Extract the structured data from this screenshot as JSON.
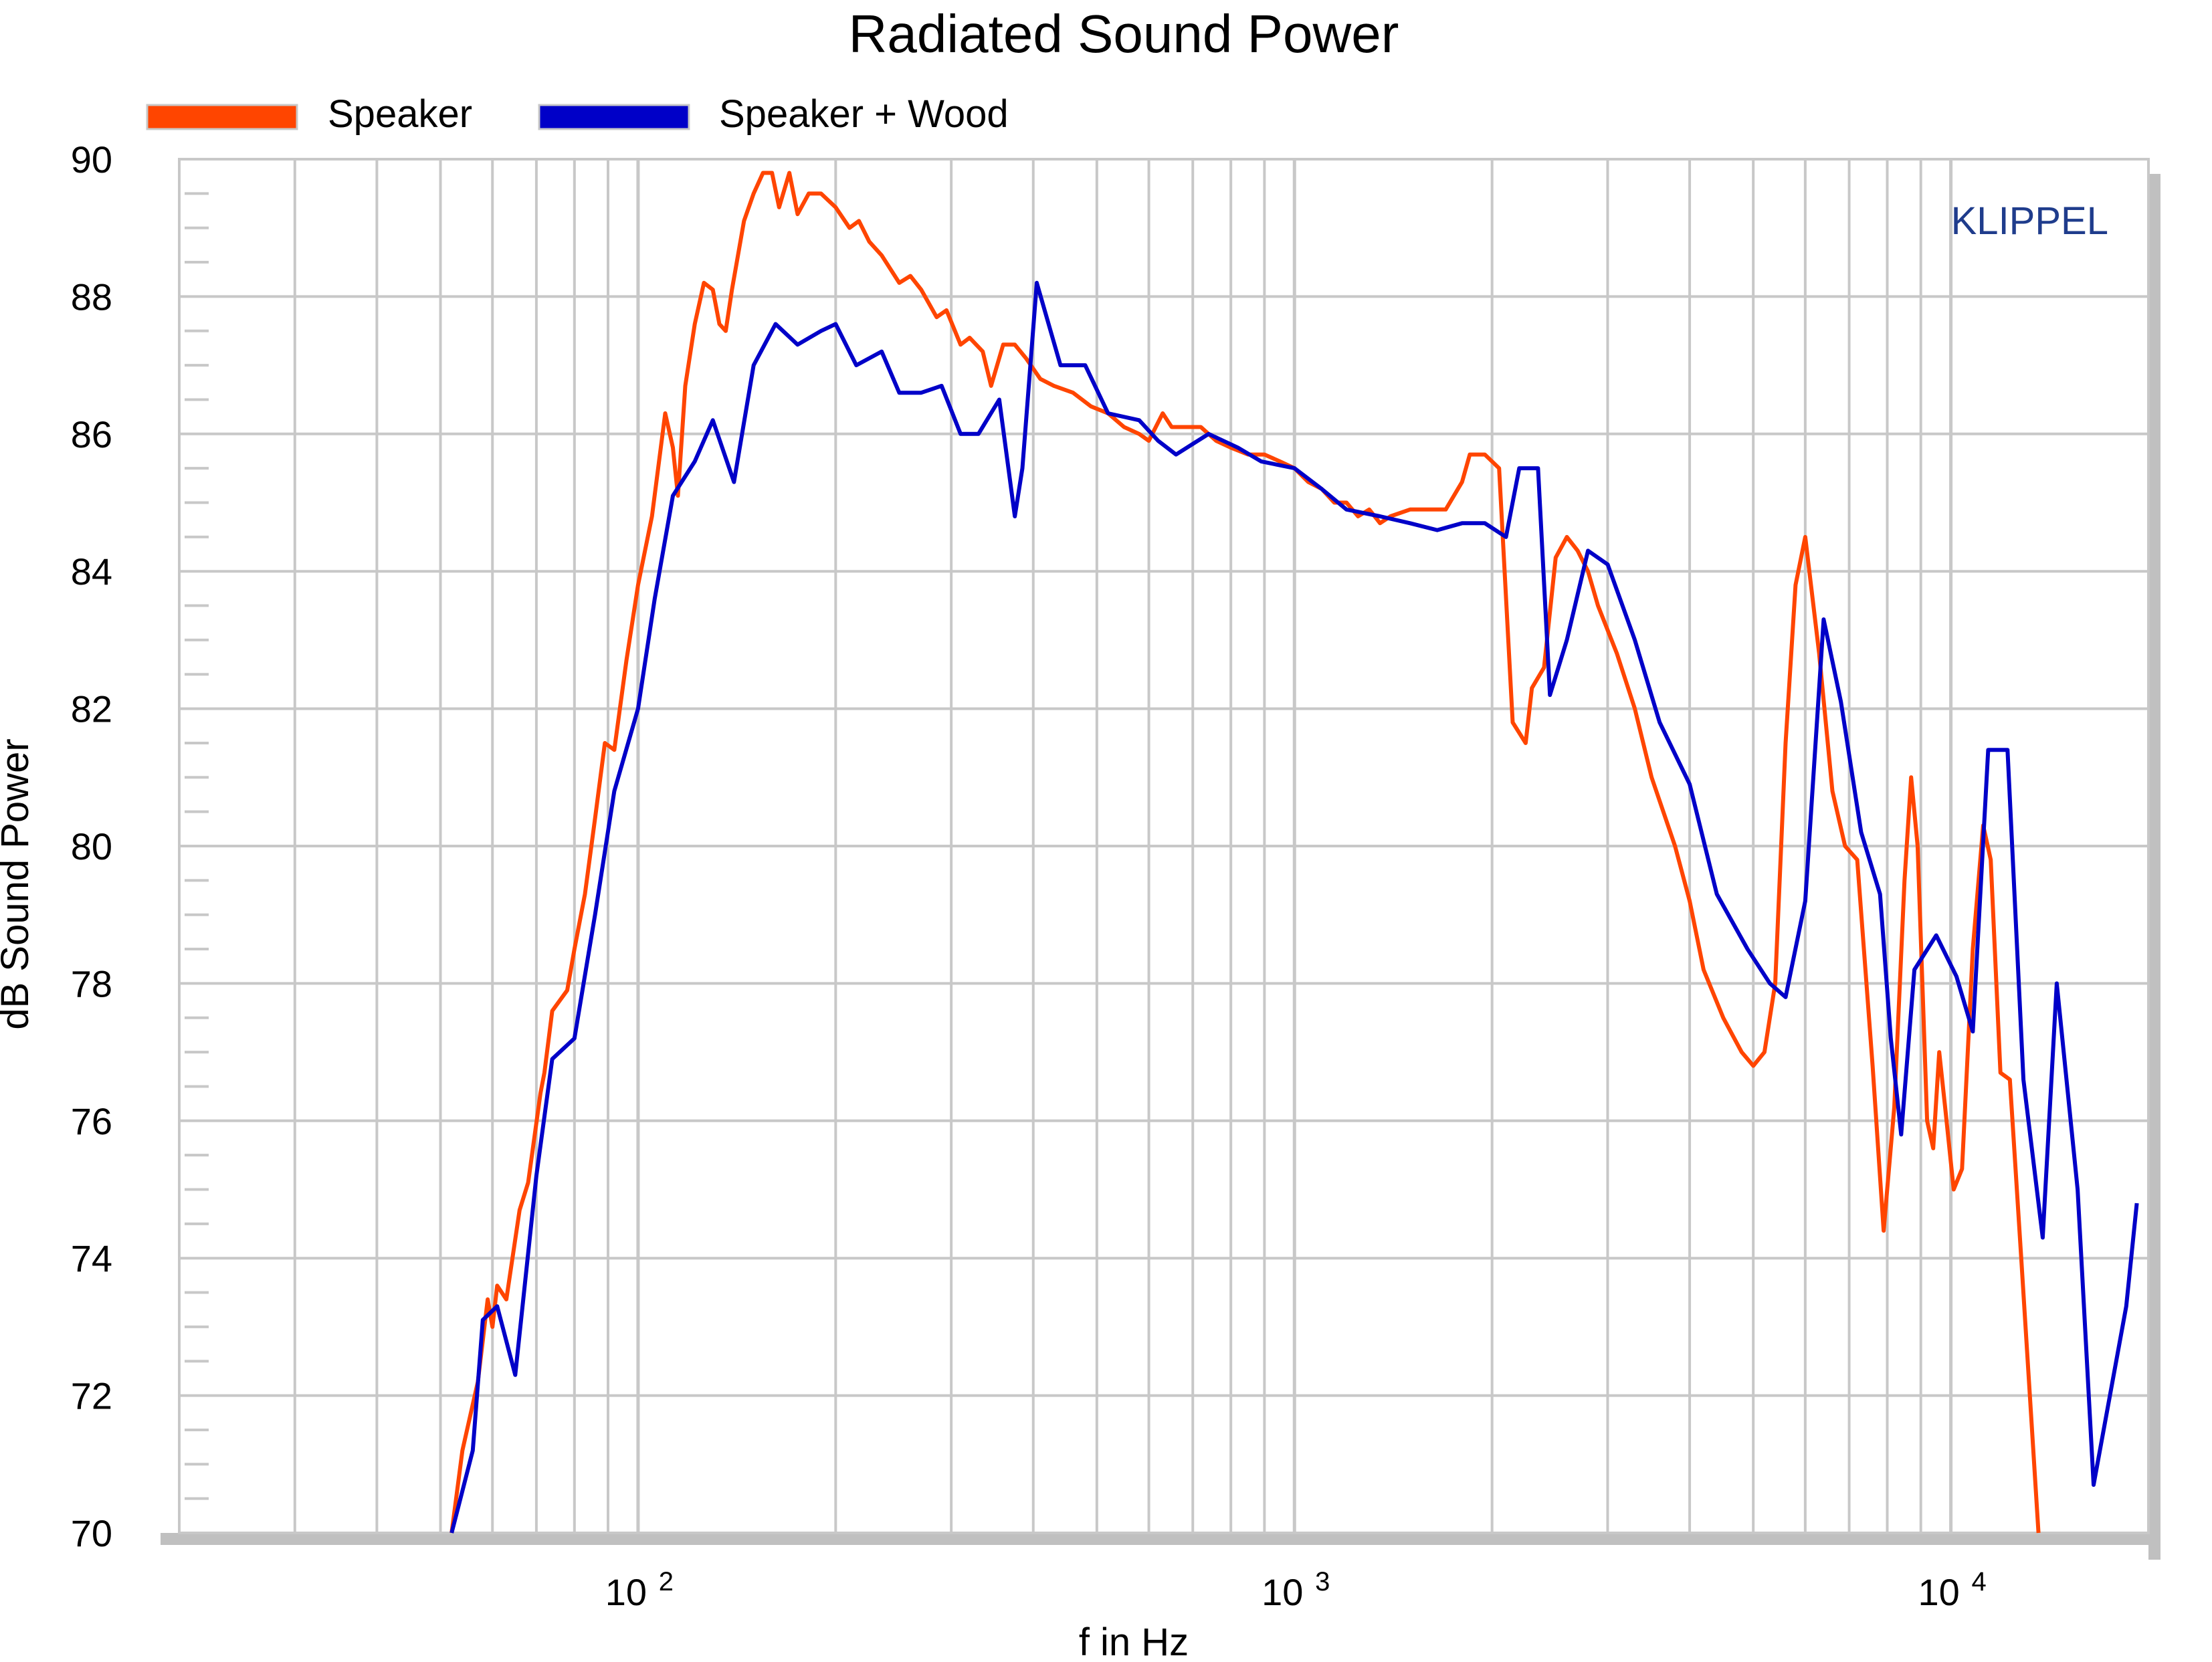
{
  "chart_data": {
    "type": "line",
    "title": "Radiated Sound Power",
    "xlabel": "f in Hz",
    "ylabel": "dB Sound Power",
    "watermark": "KLIPPEL",
    "x_scale": "log",
    "xlim": [
      20,
      20000
    ],
    "ylim": [
      70,
      90
    ],
    "grid": true,
    "legend_position": "top-left",
    "x_ticks": [
      {
        "value": 100,
        "base": "10",
        "exp": "2"
      },
      {
        "value": 1000,
        "base": "10",
        "exp": "3"
      },
      {
        "value": 10000,
        "base": "10",
        "exp": "4"
      }
    ],
    "y_ticks": [
      70,
      72,
      74,
      76,
      78,
      80,
      82,
      84,
      86,
      88,
      90
    ],
    "colors": {
      "grid": "#c8c8c8",
      "shadow": "#c0c0c0",
      "frame": "#c8c8c8",
      "watermark": "#1f3c8c",
      "text": "#000000"
    },
    "series": [
      {
        "name": "Speaker",
        "color": "#ff4500",
        "points": [
          [
            52,
            70
          ],
          [
            54,
            71.2
          ],
          [
            57,
            72.2
          ],
          [
            59,
            73.4
          ],
          [
            60,
            73.0
          ],
          [
            61,
            73.6
          ],
          [
            63,
            73.4
          ],
          [
            66,
            74.7
          ],
          [
            68,
            75.1
          ],
          [
            71,
            76.4
          ],
          [
            72,
            76.7
          ],
          [
            74,
            77.6
          ],
          [
            78,
            77.9
          ],
          [
            80,
            78.5
          ],
          [
            83,
            79.3
          ],
          [
            86,
            80.4
          ],
          [
            89,
            81.5
          ],
          [
            92,
            81.4
          ],
          [
            96,
            82.7
          ],
          [
            100,
            83.8
          ],
          [
            105,
            84.8
          ],
          [
            110,
            86.3
          ],
          [
            113,
            85.8
          ],
          [
            115,
            85.1
          ],
          [
            118,
            86.7
          ],
          [
            122,
            87.6
          ],
          [
            126,
            88.2
          ],
          [
            130,
            88.1
          ],
          [
            133,
            87.6
          ],
          [
            136,
            87.5
          ],
          [
            139,
            88.1
          ],
          [
            145,
            89.1
          ],
          [
            150,
            89.5
          ],
          [
            155,
            89.8
          ],
          [
            160,
            89.8
          ],
          [
            164,
            89.3
          ],
          [
            170,
            89.8
          ],
          [
            175,
            89.2
          ],
          [
            182,
            89.5
          ],
          [
            190,
            89.5
          ],
          [
            200,
            89.3
          ],
          [
            210,
            89.0
          ],
          [
            217,
            89.1
          ],
          [
            225,
            88.8
          ],
          [
            235,
            88.6
          ],
          [
            250,
            88.2
          ],
          [
            260,
            88.3
          ],
          [
            270,
            88.1
          ],
          [
            285,
            87.7
          ],
          [
            295,
            87.8
          ],
          [
            310,
            87.3
          ],
          [
            320,
            87.4
          ],
          [
            335,
            87.2
          ],
          [
            345,
            86.7
          ],
          [
            360,
            87.3
          ],
          [
            375,
            87.3
          ],
          [
            390,
            87.1
          ],
          [
            410,
            86.8
          ],
          [
            430,
            86.7
          ],
          [
            460,
            86.6
          ],
          [
            490,
            86.4
          ],
          [
            520,
            86.3
          ],
          [
            550,
            86.1
          ],
          [
            580,
            86.0
          ],
          [
            600,
            85.9
          ],
          [
            630,
            86.3
          ],
          [
            650,
            86.1
          ],
          [
            680,
            86.1
          ],
          [
            720,
            86.1
          ],
          [
            760,
            85.9
          ],
          [
            800,
            85.8
          ],
          [
            850,
            85.7
          ],
          [
            900,
            85.7
          ],
          [
            950,
            85.6
          ],
          [
            1000,
            85.5
          ],
          [
            1050,
            85.3
          ],
          [
            1100,
            85.2
          ],
          [
            1150,
            85.0
          ],
          [
            1200,
            85.0
          ],
          [
            1250,
            84.8
          ],
          [
            1300,
            84.9
          ],
          [
            1350,
            84.7
          ],
          [
            1400,
            84.8
          ],
          [
            1500,
            84.9
          ],
          [
            1600,
            84.9
          ],
          [
            1700,
            84.9
          ],
          [
            1800,
            85.3
          ],
          [
            1850,
            85.7
          ],
          [
            1950,
            85.7
          ],
          [
            2050,
            85.5
          ],
          [
            2150,
            81.8
          ],
          [
            2250,
            81.5
          ],
          [
            2300,
            82.3
          ],
          [
            2400,
            82.6
          ],
          [
            2500,
            84.2
          ],
          [
            2600,
            84.5
          ],
          [
            2700,
            84.3
          ],
          [
            2800,
            84.0
          ],
          [
            2900,
            83.5
          ],
          [
            3100,
            82.8
          ],
          [
            3300,
            82.0
          ],
          [
            3500,
            81.0
          ],
          [
            3800,
            80.0
          ],
          [
            4000,
            79.2
          ],
          [
            4200,
            78.2
          ],
          [
            4500,
            77.5
          ],
          [
            4800,
            77.0
          ],
          [
            5000,
            76.8
          ],
          [
            5200,
            77.0
          ],
          [
            5400,
            78.0
          ],
          [
            5600,
            81.5
          ],
          [
            5800,
            83.8
          ],
          [
            6000,
            84.5
          ],
          [
            6300,
            82.8
          ],
          [
            6600,
            80.8
          ],
          [
            6900,
            80.0
          ],
          [
            7200,
            79.8
          ],
          [
            7600,
            76.8
          ],
          [
            7900,
            74.4
          ],
          [
            8200,
            76.2
          ],
          [
            8500,
            79.5
          ],
          [
            8700,
            81.0
          ],
          [
            8900,
            80.0
          ],
          [
            9200,
            76.0
          ],
          [
            9400,
            75.6
          ],
          [
            9600,
            77.0
          ],
          [
            9800,
            76.2
          ],
          [
            10100,
            75.0
          ],
          [
            10400,
            75.3
          ],
          [
            10800,
            78.5
          ],
          [
            11200,
            80.3
          ],
          [
            11500,
            79.8
          ],
          [
            11900,
            76.7
          ],
          [
            12300,
            76.6
          ],
          [
            12800,
            74.0
          ],
          [
            13600,
            70
          ]
        ]
      },
      {
        "name": "Speaker + Wood",
        "color": "#0000c8",
        "points": [
          [
            52,
            70
          ],
          [
            56,
            71.2
          ],
          [
            58,
            73.1
          ],
          [
            61,
            73.3
          ],
          [
            65,
            72.3
          ],
          [
            70,
            75.2
          ],
          [
            74,
            76.9
          ],
          [
            80,
            77.2
          ],
          [
            86,
            79.0
          ],
          [
            92,
            80.8
          ],
          [
            100,
            82.0
          ],
          [
            106,
            83.6
          ],
          [
            113,
            85.1
          ],
          [
            122,
            85.6
          ],
          [
            130,
            86.2
          ],
          [
            140,
            85.3
          ],
          [
            150,
            87.0
          ],
          [
            162,
            87.6
          ],
          [
            175,
            87.3
          ],
          [
            190,
            87.5
          ],
          [
            200,
            87.6
          ],
          [
            215,
            87.0
          ],
          [
            235,
            87.2
          ],
          [
            250,
            86.6
          ],
          [
            270,
            86.6
          ],
          [
            290,
            86.7
          ],
          [
            310,
            86.0
          ],
          [
            330,
            86.0
          ],
          [
            355,
            86.5
          ],
          [
            375,
            84.8
          ],
          [
            385,
            85.5
          ],
          [
            405,
            88.2
          ],
          [
            440,
            87.0
          ],
          [
            480,
            87.0
          ],
          [
            520,
            86.3
          ],
          [
            580,
            86.2
          ],
          [
            620,
            85.9
          ],
          [
            660,
            85.7
          ],
          [
            740,
            86.0
          ],
          [
            820,
            85.8
          ],
          [
            890,
            85.6
          ],
          [
            1000,
            85.5
          ],
          [
            1100,
            85.2
          ],
          [
            1200,
            84.9
          ],
          [
            1350,
            84.8
          ],
          [
            1500,
            84.7
          ],
          [
            1650,
            84.6
          ],
          [
            1800,
            84.7
          ],
          [
            1950,
            84.7
          ],
          [
            2100,
            84.5
          ],
          [
            2200,
            85.5
          ],
          [
            2350,
            85.5
          ],
          [
            2450,
            82.2
          ],
          [
            2600,
            83.0
          ],
          [
            2800,
            84.3
          ],
          [
            3000,
            84.1
          ],
          [
            3300,
            83.0
          ],
          [
            3600,
            81.8
          ],
          [
            4000,
            80.9
          ],
          [
            4400,
            79.3
          ],
          [
            4900,
            78.5
          ],
          [
            5300,
            78.0
          ],
          [
            5600,
            77.8
          ],
          [
            6000,
            79.2
          ],
          [
            6400,
            83.3
          ],
          [
            6800,
            82.1
          ],
          [
            7300,
            80.2
          ],
          [
            7800,
            79.3
          ],
          [
            8100,
            77.2
          ],
          [
            8400,
            75.8
          ],
          [
            8800,
            78.2
          ],
          [
            9500,
            78.7
          ],
          [
            10200,
            78.1
          ],
          [
            10800,
            77.3
          ],
          [
            11400,
            81.4
          ],
          [
            12200,
            81.4
          ],
          [
            12900,
            76.6
          ],
          [
            13800,
            74.3
          ],
          [
            14500,
            78.0
          ],
          [
            15600,
            75.0
          ],
          [
            16500,
            70.7
          ],
          [
            18500,
            73.3
          ],
          [
            19200,
            74.8
          ]
        ]
      }
    ]
  }
}
